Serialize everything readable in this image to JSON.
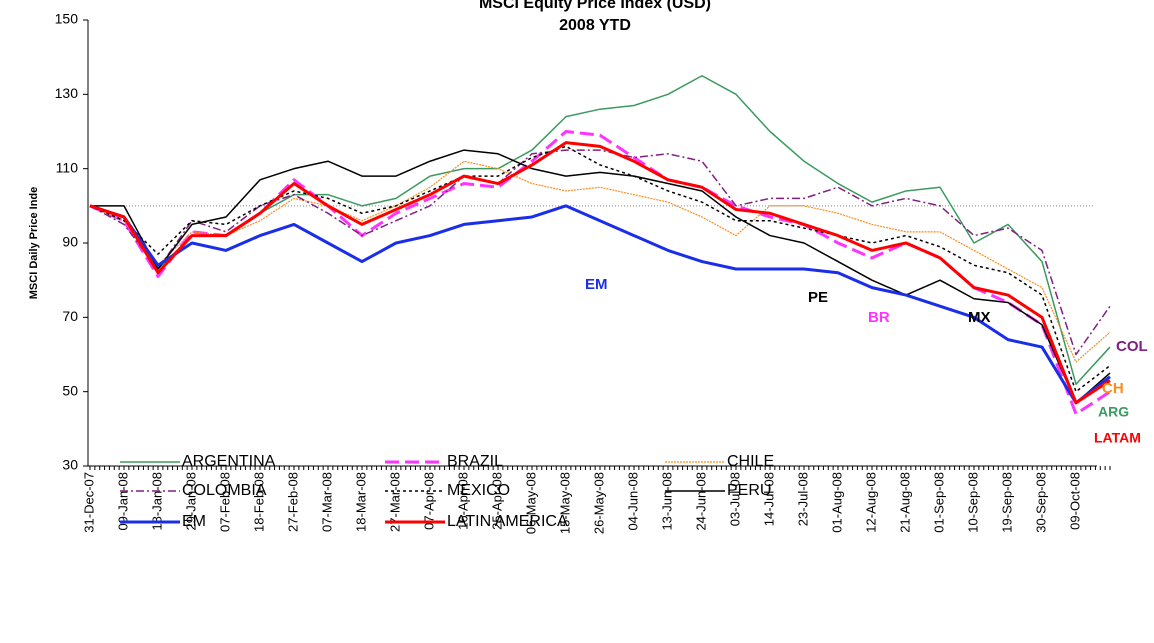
{
  "chart_data": {
    "type": "line",
    "title": "MSCI Equity Price Index (USD)",
    "subtitle": "2008 YTD",
    "y_label": "MSCI Daily Price Inde",
    "categories": [
      "31-Dec-07",
      "09-Jan-08",
      "18-Jan-08",
      "29-Jan-08",
      "07-Feb-08",
      "18-Feb-08",
      "27-Feb-08",
      "07-Mar-08",
      "18-Mar-08",
      "27-Mar-08",
      "07-Apr-08",
      "16-Apr-08",
      "25-Apr-08",
      "06-May-08",
      "15-May-08",
      "26-May-08",
      "04-Jun-08",
      "13-Jun-08",
      "24-Jun-08",
      "03-Jul-08",
      "14-Jul-08",
      "23-Jul-08",
      "01-Aug-08",
      "12-Aug-08",
      "21-Aug-08",
      "01-Sep-08",
      "10-Sep-08",
      "19-Sep-08",
      "30-Sep-08",
      "09-Oct-08",
      null
    ],
    "ylim": [
      30,
      150
    ],
    "yticks": [
      30,
      50,
      70,
      90,
      110,
      130,
      150
    ],
    "reference_line": 100,
    "series": [
      {
        "name": "ARGENTINA",
        "color": "#3c9a5f",
        "width": 1.5,
        "dash": "",
        "values": [
          100,
          97,
          83,
          92,
          92,
          98,
          103,
          103,
          100,
          102,
          108,
          110,
          110,
          115,
          124,
          126,
          127,
          130,
          135,
          130,
          120,
          112,
          106,
          101,
          104,
          105,
          90,
          95,
          85,
          52,
          62
        ]
      },
      {
        "name": "BRAZIL",
        "color": "#ff33ff",
        "width": 3,
        "dash": "14 6",
        "values": [
          100,
          96,
          81,
          93,
          92,
          98,
          107,
          100,
          92,
          98,
          102,
          106,
          105,
          112,
          120,
          119,
          113,
          107,
          105,
          100,
          97,
          95,
          90,
          86,
          90,
          86,
          78,
          74,
          68,
          44,
          50
        ]
      },
      {
        "name": "CHILE",
        "color": "#ff8c1a",
        "width": 1.2,
        "dash": "2 1",
        "values": [
          100,
          96,
          84,
          93,
          92,
          96,
          102,
          100,
          96,
          100,
          105,
          112,
          110,
          106,
          104,
          105,
          103,
          101,
          97,
          92,
          100,
          100,
          98,
          95,
          93,
          93,
          88,
          83,
          78,
          58,
          66
        ]
      },
      {
        "name": "COLOMBIA",
        "color": "#802080",
        "width": 1.5,
        "dash": "8 3 2 3",
        "values": [
          100,
          95,
          83,
          96,
          93,
          100,
          103,
          98,
          92,
          96,
          100,
          108,
          106,
          114,
          115,
          115,
          113,
          114,
          112,
          100,
          102,
          102,
          105,
          100,
          102,
          100,
          92,
          94,
          88,
          60,
          73
        ]
      },
      {
        "name": "MEXICO",
        "color": "#000000",
        "width": 1.5,
        "dash": "3 3",
        "values": [
          100,
          96,
          87,
          96,
          95,
          100,
          104,
          102,
          98,
          100,
          104,
          108,
          108,
          113,
          116,
          111,
          108,
          104,
          101,
          96,
          96,
          94,
          92,
          90,
          92,
          89,
          84,
          82,
          76,
          50,
          57
        ]
      },
      {
        "name": "PERU",
        "color": "#000000",
        "width": 1.5,
        "dash": "",
        "values": [
          100,
          100,
          83,
          95,
          97,
          107,
          110,
          112,
          108,
          108,
          112,
          115,
          114,
          110,
          108,
          109,
          108,
          106,
          104,
          97,
          92,
          90,
          85,
          80,
          76,
          80,
          75,
          74,
          68,
          47,
          55
        ]
      },
      {
        "name": "EM",
        "color": "#1a2eea",
        "width": 3,
        "dash": "",
        "values": [
          100,
          97,
          84,
          90,
          88,
          92,
          95,
          90,
          85,
          90,
          92,
          95,
          96,
          97,
          100,
          96,
          92,
          88,
          85,
          83,
          83,
          83,
          82,
          78,
          76,
          73,
          70,
          64,
          62,
          47,
          54
        ]
      },
      {
        "name": "LATIN AMERICA",
        "color": "#ff0000",
        "width": 3,
        "dash": "",
        "values": [
          100,
          97,
          82,
          92,
          92,
          98,
          106,
          100,
          95,
          99,
          103,
          108,
          106,
          111,
          117,
          116,
          112,
          107,
          105,
          99,
          98,
          95,
          92,
          88,
          90,
          86,
          78,
          76,
          70,
          47,
          53
        ]
      }
    ],
    "annotations": [
      {
        "text": "EM",
        "color": "#1a2eea"
      },
      {
        "text": "PE",
        "color": "#000000"
      },
      {
        "text": "BR",
        "color": "#ff33ff"
      },
      {
        "text": "MX",
        "color": "#000000"
      },
      {
        "text": "COL",
        "color": "#802080"
      },
      {
        "text": "CH",
        "color": "#ff8c1a"
      },
      {
        "text": "ARG",
        "color": "#3c9a5f"
      },
      {
        "text": "LATAM",
        "color": "#ff0000"
      }
    ]
  }
}
